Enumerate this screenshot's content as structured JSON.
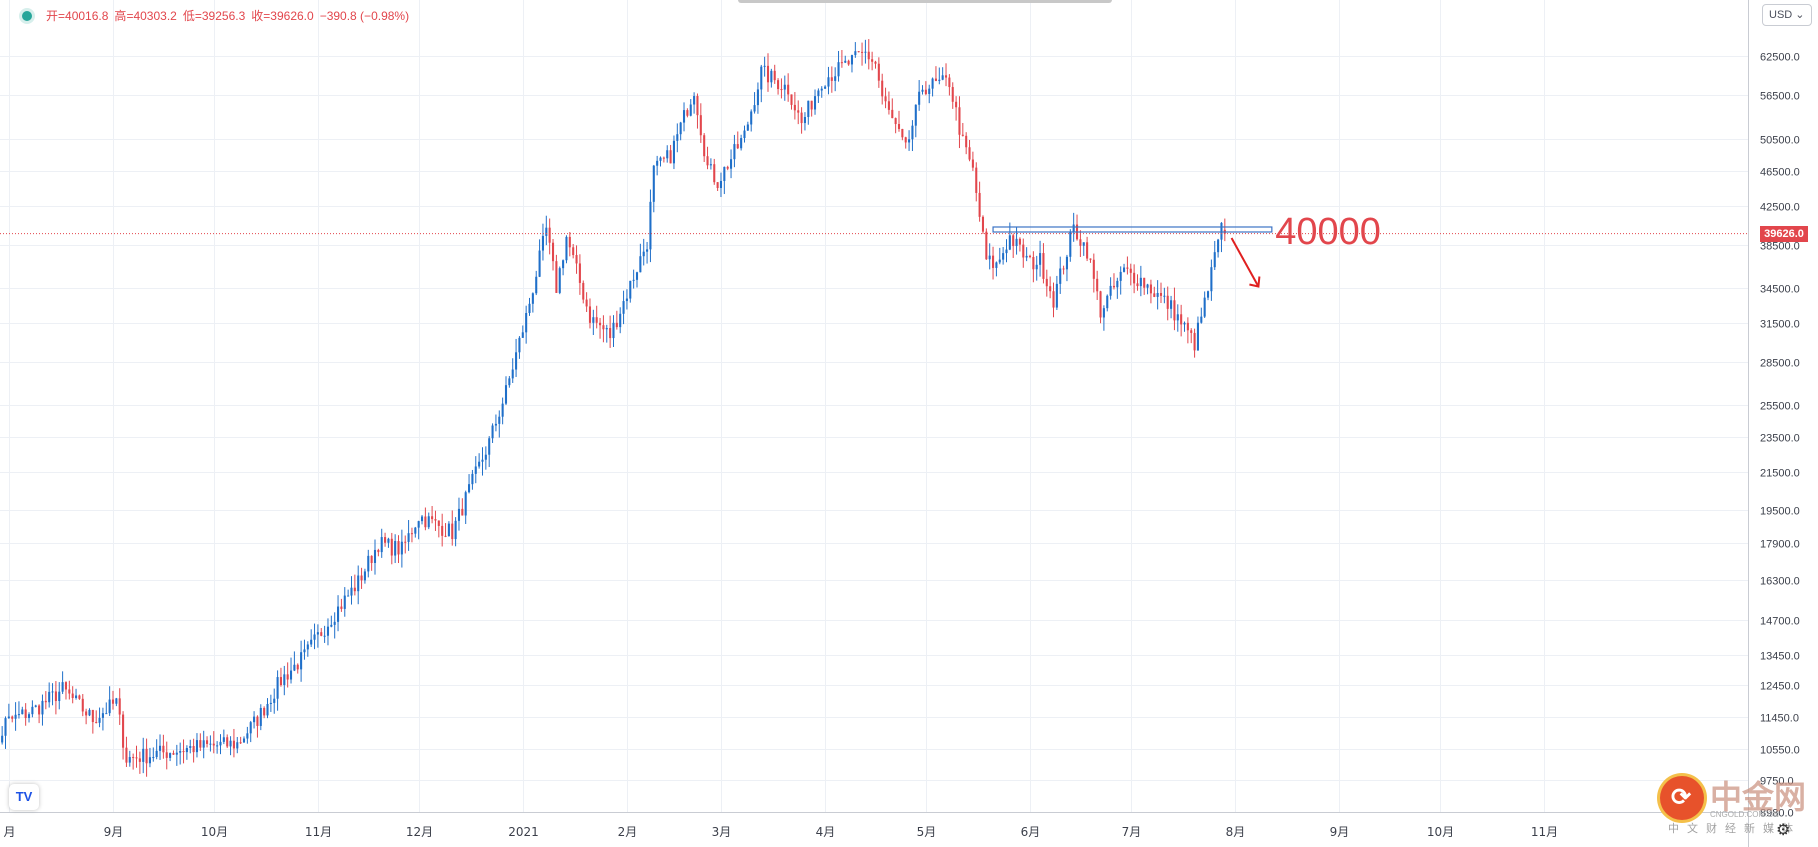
{
  "header": {
    "status_dot_color": "#26a69a",
    "ohlc": [
      {
        "label": "开",
        "value": "40016.8"
      },
      {
        "label": "高",
        "value": "40303.2"
      },
      {
        "label": "低",
        "value": "39256.3"
      },
      {
        "label": "收",
        "value": "39626.0"
      },
      {
        "label": "",
        "value": "−390.8 (−0.98%)"
      }
    ]
  },
  "currency": "USD",
  "logo": "TV",
  "last_price": "39626.0",
  "annotation": {
    "text": "40000",
    "color": "#e2464c"
  },
  "watermark": {
    "title": "中金网",
    "subtitle": "中文财经新媒体",
    "en": "CNGOLD.COM.CN"
  },
  "colors": {
    "up": "#1f6fc9",
    "down": "#e2464c",
    "grid": "#edf0f5",
    "resistance": "#3b73c5"
  },
  "chart_data": {
    "type": "candlestick",
    "x_ticks": [
      "月",
      "9月",
      "10月",
      "11月",
      "12月",
      "2021",
      "2月",
      "3月",
      "4月",
      "5月",
      "6月",
      "7月",
      "8月",
      "9月",
      "10月",
      "11月"
    ],
    "y_ticks": [
      62500,
      56500,
      50500,
      46500,
      42500,
      38500,
      34500,
      31500,
      28500,
      25500,
      23500,
      21500,
      19500,
      17900,
      16300,
      14700,
      13450,
      12450,
      11450,
      10550,
      9750,
      8980
    ],
    "y_tick_labels": [
      "62500.0",
      "56500.0",
      "50500.0",
      "46500.0",
      "42500.0",
      "38500.0",
      "34500.0",
      "31500.0",
      "28500.0",
      "25500.0",
      "23500.0",
      "21500.0",
      "19500.0",
      "17900.0",
      "16300.0",
      "14700.0",
      "13450.0",
      "12450.0",
      "11450.0",
      "10550.0",
      "9750.0",
      "8980.0"
    ],
    "y_scale": "log",
    "ylim": [
      8300,
      72000
    ],
    "last_close": 39626.0,
    "resistance_level": 40000,
    "anchors": [
      [
        "2020-07-24",
        9400
      ],
      [
        "2020-07-31",
        11300
      ],
      [
        "2020-08-09",
        11700
      ],
      [
        "2020-08-17",
        12300
      ],
      [
        "2020-08-26",
        11400
      ],
      [
        "2020-09-02",
        11900
      ],
      [
        "2020-09-05",
        10300
      ],
      [
        "2020-09-12",
        10400
      ],
      [
        "2020-09-25",
        10600
      ],
      [
        "2020-10-08",
        10700
      ],
      [
        "2020-10-14",
        11400
      ],
      [
        "2020-10-21",
        12600
      ],
      [
        "2020-10-28",
        13400
      ],
      [
        "2020-11-05",
        14800
      ],
      [
        "2020-11-13",
        16200
      ],
      [
        "2020-11-19",
        17900
      ],
      [
        "2020-11-26",
        17600
      ],
      [
        "2020-12-01",
        19200
      ],
      [
        "2020-12-11",
        18400
      ],
      [
        "2020-12-16",
        20500
      ],
      [
        "2020-12-22",
        23200
      ],
      [
        "2020-12-27",
        26400
      ],
      [
        "2021-01-02",
        32000
      ],
      [
        "2021-01-08",
        40000
      ],
      [
        "2021-01-11",
        34500
      ],
      [
        "2021-01-14",
        39300
      ],
      [
        "2021-01-21",
        32000
      ],
      [
        "2021-01-27",
        30500
      ],
      [
        "2021-02-01",
        34000
      ],
      [
        "2021-02-07",
        38800
      ],
      [
        "2021-02-09",
        46500
      ],
      [
        "2021-02-14",
        48500
      ],
      [
        "2021-02-21",
        57500
      ],
      [
        "2021-02-25",
        47000
      ],
      [
        "2021-02-28",
        45300
      ],
      [
        "2021-03-08",
        51000
      ],
      [
        "2021-03-13",
        60000
      ],
      [
        "2021-03-21",
        57500
      ],
      [
        "2021-03-25",
        52500
      ],
      [
        "2021-03-31",
        58800
      ],
      [
        "2021-04-13",
        63000
      ],
      [
        "2021-04-16",
        61300
      ],
      [
        "2021-04-18",
        56200
      ],
      [
        "2021-04-25",
        49000
      ],
      [
        "2021-04-30",
        57700
      ],
      [
        "2021-05-08",
        58500
      ],
      [
        "2021-05-12",
        50000
      ],
      [
        "2021-05-15",
        46500
      ],
      [
        "2021-05-19",
        37000
      ],
      [
        "2021-05-22",
        36500
      ],
      [
        "2021-05-26",
        39300
      ],
      [
        "2021-06-01",
        36700
      ],
      [
        "2021-06-04",
        37000
      ],
      [
        "2021-06-08",
        33500
      ],
      [
        "2021-06-14",
        40200
      ],
      [
        "2021-06-18",
        38000
      ],
      [
        "2021-06-22",
        32500
      ],
      [
        "2021-06-29",
        36000
      ],
      [
        "2021-07-04",
        35200
      ],
      [
        "2021-07-13",
        32800
      ],
      [
        "2021-07-20",
        29900
      ],
      [
        "2021-07-24",
        34300
      ],
      [
        "2021-07-26",
        37300
      ],
      [
        "2021-07-28",
        40000
      ],
      [
        "2021-07-29",
        39626
      ]
    ]
  }
}
